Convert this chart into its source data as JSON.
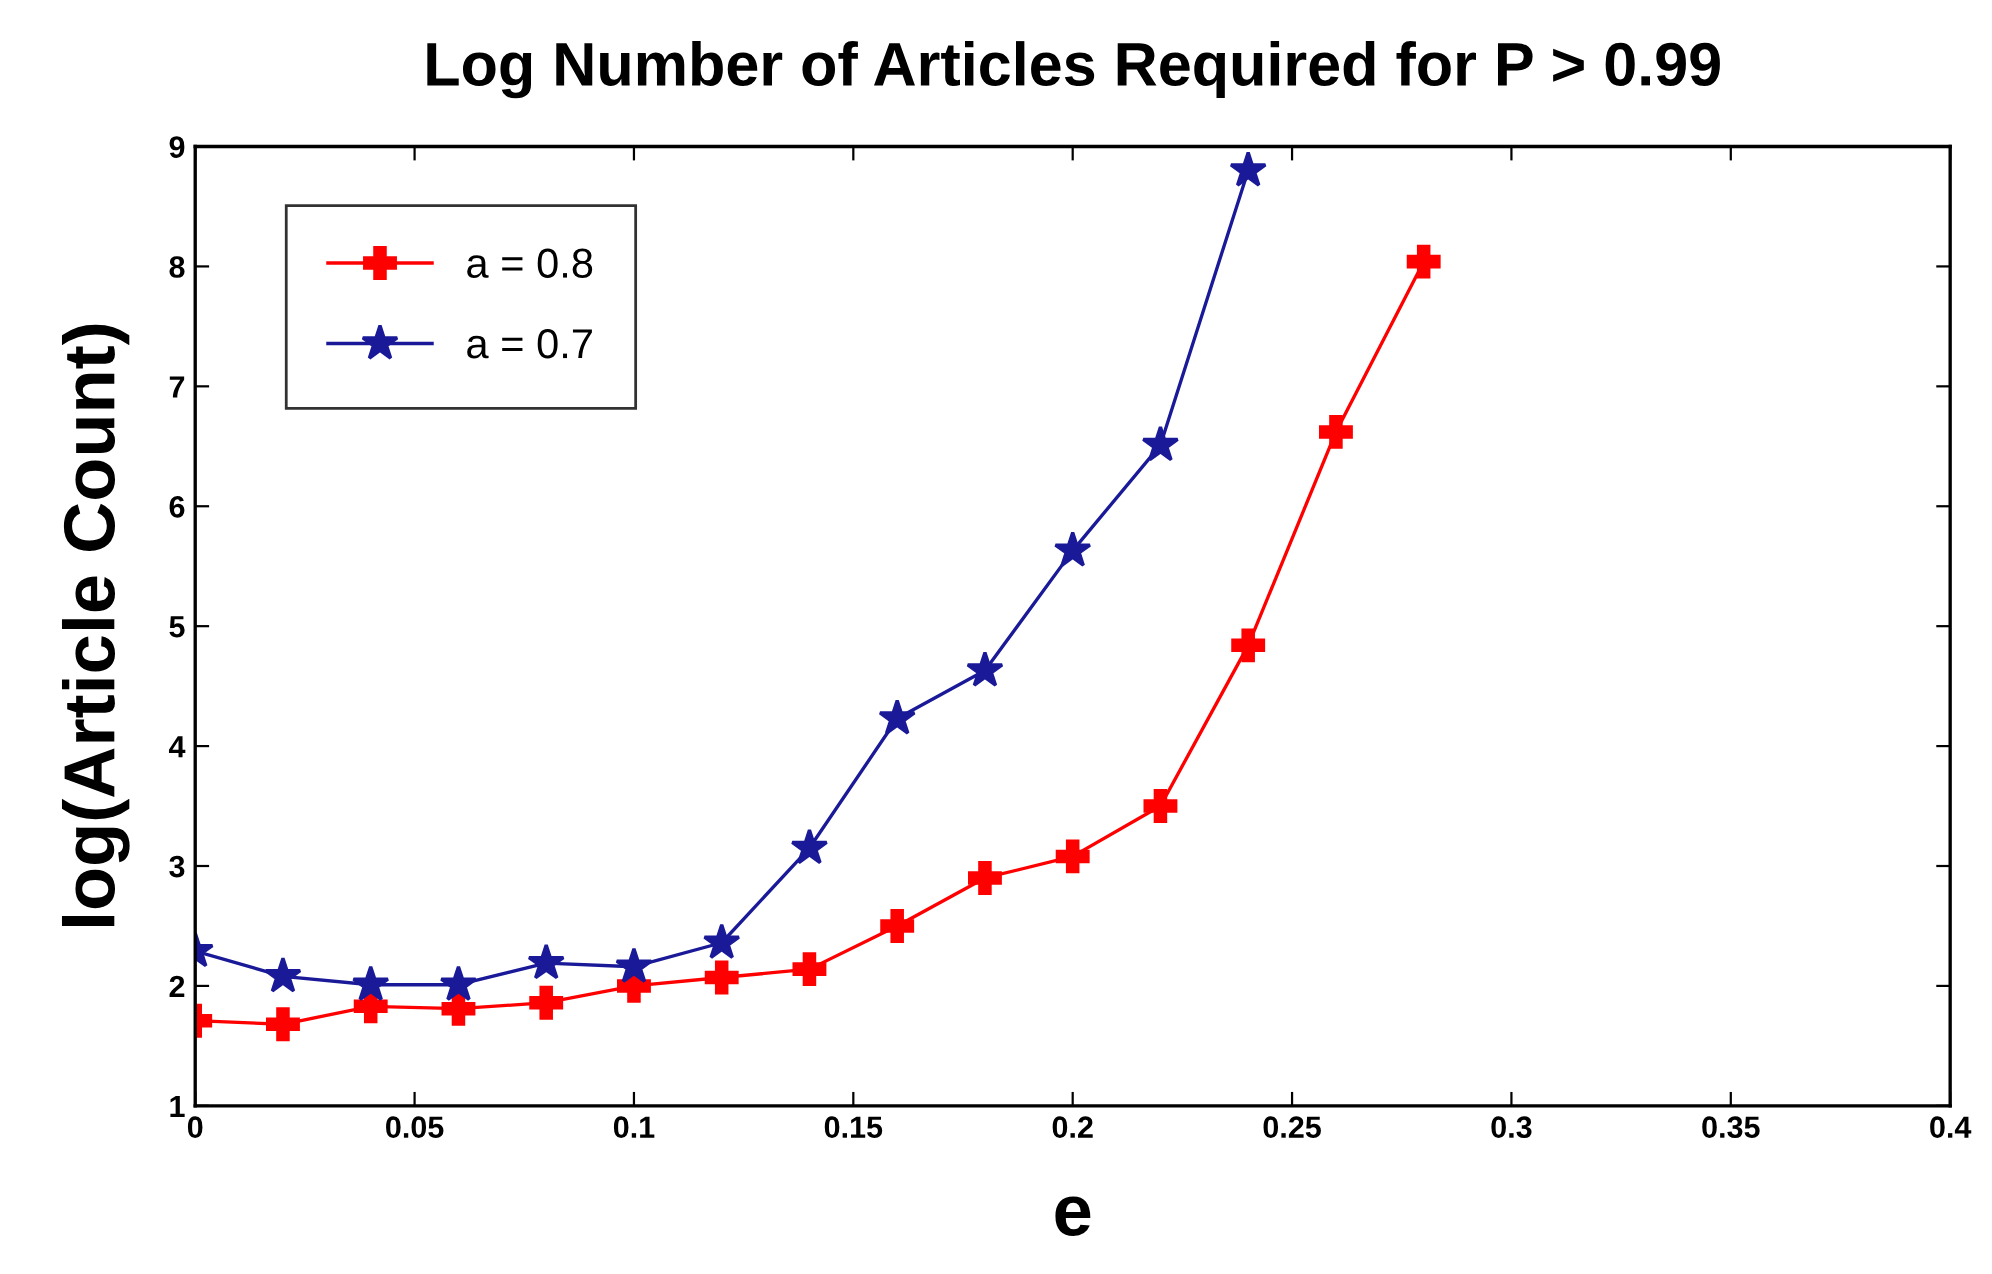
{
  "chart_data": {
    "type": "line",
    "title": "Log Number of Articles Required for P > 0.99",
    "xlabel": "e",
    "ylabel": "log(Article Count)",
    "xlim": [
      0,
      0.4
    ],
    "xticks": [
      0,
      0.05,
      0.1,
      0.15,
      0.2,
      0.25,
      0.3,
      0.35,
      0.4
    ],
    "ylim": [
      1,
      9
    ],
    "yticks": [
      1,
      2,
      3,
      4,
      5,
      6,
      7,
      8,
      9
    ],
    "grid": false,
    "legend": "top left",
    "line_style": "solid",
    "series": [
      {
        "name": "a = 0.8",
        "color": "#ff0000",
        "marker": "cross",
        "x": [
          0,
          0.02,
          0.04,
          0.06,
          0.08,
          0.1,
          0.12,
          0.14,
          0.16,
          0.18,
          0.2,
          0.22,
          0.24,
          0.26,
          0.28
        ],
        "values": [
          1.71,
          1.68,
          1.83,
          1.81,
          1.86,
          2.0,
          2.07,
          2.14,
          2.5,
          2.9,
          3.08,
          3.5,
          4.84,
          6.62,
          8.04
        ]
      },
      {
        "name": "a = 0.7",
        "color": "#1a1a99",
        "marker": "star",
        "x": [
          0,
          0.02,
          0.04,
          0.06,
          0.08,
          0.1,
          0.12,
          0.14,
          0.16,
          0.18,
          0.2,
          0.22,
          0.24
        ],
        "values": [
          2.29,
          2.08,
          2.01,
          2.01,
          2.19,
          2.16,
          2.36,
          3.15,
          4.23,
          4.63,
          5.63,
          6.51,
          8.8
        ]
      }
    ]
  }
}
